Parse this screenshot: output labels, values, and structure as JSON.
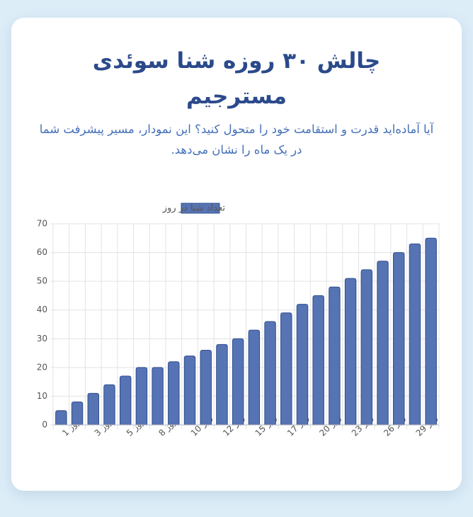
{
  "chart_data": {
    "type": "bar",
    "title": "چالش ۳۰ روزه شنا سوئدی مسترجیم",
    "subtitle": "آیا آماده‌اید قدرت و استقامت خود را متحول کنید؟ این نمودار، مسیر پیشرفت شما در یک ماه را نشان می‌دهد.",
    "categories": [
      "روز 1",
      null,
      "روز 3",
      null,
      "روز 5",
      null,
      "روز 8",
      null,
      "روز 10",
      null,
      "روز 12",
      null,
      "روز 15",
      null,
      "روز 17",
      null,
      "روز 20",
      null,
      "روز 23",
      null,
      "روز 26",
      null,
      "روز 29",
      null
    ],
    "series": [
      {
        "name": "تعداد شنا در روز",
        "color": "#5673b3",
        "values": [
          5,
          8,
          11,
          14,
          17,
          20,
          20,
          22,
          24,
          26,
          28,
          30,
          33,
          36,
          39,
          42,
          45,
          48,
          51,
          54,
          57,
          60,
          63,
          65
        ]
      }
    ],
    "ylim": [
      0,
      70
    ],
    "yticks": [
      0,
      10,
      20,
      30,
      40,
      50,
      60,
      70
    ],
    "grid": true,
    "legend": "top"
  }
}
